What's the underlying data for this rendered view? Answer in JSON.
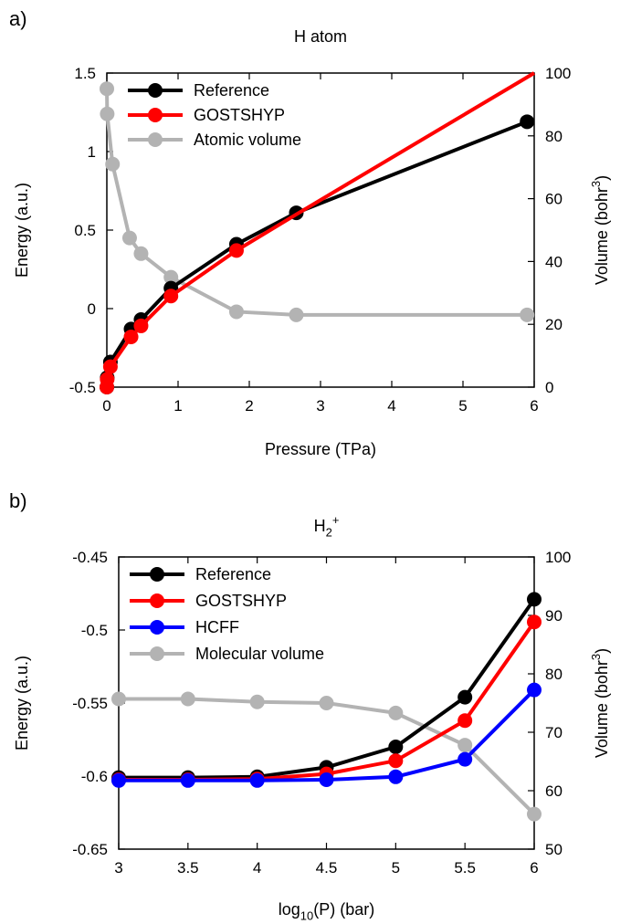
{
  "chart_data": [
    {
      "panel_label": "a)",
      "type": "line",
      "title": "H atom",
      "xlabel": "Pressure (TPa)",
      "ylabel_left": "Energy (a.u.)",
      "ylabel_right": "Volume (bohr3)",
      "xlim": [
        0,
        6
      ],
      "ylim_left": [
        -0.5,
        1.5
      ],
      "ylim_right": [
        0,
        100
      ],
      "xticks": [
        "0",
        "1",
        "2",
        "3",
        "4",
        "5",
        "6"
      ],
      "yticks_left": [
        "-0.5",
        "0",
        "0.5",
        "1",
        "1.5"
      ],
      "yticks_right": [
        "0",
        "20",
        "40",
        "60",
        "80",
        "100"
      ],
      "xtick_values": [
        0,
        1,
        2,
        3,
        4,
        5,
        6
      ],
      "ytick_left_values": [
        -0.5,
        0,
        0.5,
        1,
        1.5
      ],
      "ytick_right_values": [
        0,
        20,
        40,
        60,
        80,
        100
      ],
      "legend_position": "top-left",
      "series": [
        {
          "name": "Reference",
          "color": "#000000",
          "axis": "left",
          "markers": true,
          "x": [
            0.0,
            0.005,
            0.05,
            0.34,
            0.48,
            0.9,
            1.82,
            2.66,
            5.9
          ],
          "y": [
            -0.5,
            -0.44,
            -0.34,
            -0.13,
            -0.07,
            0.13,
            0.41,
            0.61,
            1.19
          ]
        },
        {
          "name": "GOSTSHYP",
          "color": "#ff0000",
          "axis": "left",
          "markers": true,
          "marker_count": 7,
          "x": [
            0.0,
            0.005,
            0.05,
            0.34,
            0.48,
            0.9,
            1.82,
            2.66,
            6.0
          ],
          "y": [
            -0.5,
            -0.45,
            -0.37,
            -0.18,
            -0.11,
            0.08,
            0.37,
            0.6,
            1.5
          ]
        },
        {
          "name": "Atomic volume",
          "color": "#b3b3b3",
          "axis": "right",
          "markers": true,
          "x": [
            0.0,
            0.005,
            0.08,
            0.32,
            0.48,
            0.9,
            1.82,
            2.66,
            5.9
          ],
          "y": [
            95,
            87,
            71,
            47.5,
            42.5,
            35,
            24,
            23,
            23
          ]
        }
      ]
    },
    {
      "panel_label": "b)",
      "type": "line",
      "title": "H2+",
      "xlabel": "log10(P) (bar)",
      "ylabel_left": "Energy (a.u.)",
      "ylabel_right": "Volume (bohr3)",
      "xlim": [
        3,
        6
      ],
      "ylim_left": [
        -0.65,
        -0.45
      ],
      "ylim_right": [
        50,
        100
      ],
      "xticks": [
        "3",
        "3.5",
        "4",
        "4.5",
        "5",
        "5.5",
        "6"
      ],
      "yticks_left": [
        "-0.65",
        "-0.6",
        "-0.55",
        "-0.5",
        "-0.45"
      ],
      "yticks_right": [
        "50",
        "60",
        "70",
        "80",
        "90",
        "100"
      ],
      "xtick_values": [
        3,
        3.5,
        4,
        4.5,
        5,
        5.5,
        6
      ],
      "ytick_left_values": [
        -0.65,
        -0.6,
        -0.55,
        -0.5,
        -0.45
      ],
      "ytick_right_values": [
        50,
        60,
        70,
        80,
        90,
        100
      ],
      "legend_position": "top-left",
      "series": [
        {
          "name": "Reference",
          "color": "#000000",
          "axis": "left",
          "markers": true,
          "x": [
            3,
            3.5,
            4,
            4.5,
            5,
            5.5,
            6
          ],
          "y": [
            -0.601,
            -0.601,
            -0.6005,
            -0.594,
            -0.58,
            -0.546,
            -0.479
          ]
        },
        {
          "name": "GOSTSHYP",
          "color": "#ff0000",
          "axis": "left",
          "markers": true,
          "x": [
            3,
            3.5,
            4,
            4.5,
            5,
            5.5,
            6
          ],
          "y": [
            -0.6025,
            -0.6025,
            -0.602,
            -0.5985,
            -0.5895,
            -0.562,
            -0.4945
          ]
        },
        {
          "name": "HCFF",
          "color": "#0000ff",
          "axis": "left",
          "markers": true,
          "x": [
            3,
            3.5,
            4,
            4.5,
            5,
            5.5,
            6
          ],
          "y": [
            -0.603,
            -0.603,
            -0.603,
            -0.6025,
            -0.6005,
            -0.5885,
            -0.541
          ]
        },
        {
          "name": "Molecular volume",
          "color": "#b3b3b3",
          "axis": "right",
          "markers": true,
          "x": [
            3,
            3.5,
            4,
            4.5,
            5,
            5.5,
            6
          ],
          "y": [
            75.7,
            75.7,
            75.2,
            75.0,
            73.3,
            67.8,
            56.0
          ]
        }
      ]
    }
  ]
}
